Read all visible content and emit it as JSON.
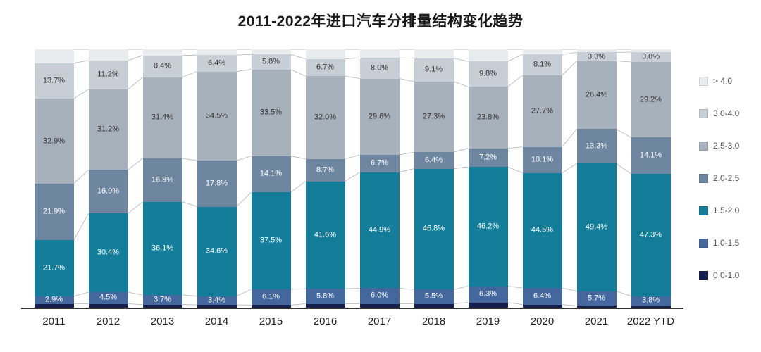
{
  "title": "2011-2022年进口汽车分排量结构变化趋势",
  "chart_data": {
    "type": "bar",
    "stacked": true,
    "percent_stacked": true,
    "title": "2011-2022年进口汽车分排量结构变化趋势",
    "xlabel": "",
    "ylabel": "",
    "ylim": [
      0,
      100
    ],
    "grid": false,
    "legend_position": "right",
    "series_connector_lines": true,
    "connector_line_color": "#b3b3b3",
    "axis_line_color": "#333333",
    "categories": [
      "2011",
      "2012",
      "2013",
      "2014",
      "2015",
      "2016",
      "2017",
      "2018",
      "2019",
      "2020",
      "2021",
      "2022 YTD"
    ],
    "series": [
      {
        "name": "0.0-1.0",
        "color": "#16204e",
        "label_color": "#ffffff",
        "show_labels": false,
        "estimated": true,
        "values": [
          1.5,
          1.5,
          1.2,
          1.1,
          1.0,
          1.5,
          1.5,
          1.5,
          2.0,
          1.2,
          0.7,
          0.7
        ]
      },
      {
        "name": "1.0-1.5",
        "color": "#44689d",
        "label_color": "#ffffff",
        "show_labels": true,
        "estimated": false,
        "values": [
          2.9,
          4.5,
          3.7,
          3.4,
          6.1,
          5.8,
          6.0,
          5.5,
          6.3,
          6.4,
          5.7,
          3.8
        ]
      },
      {
        "name": "1.5-2.0",
        "color": "#147d99",
        "label_color": "#ffffff",
        "show_labels": true,
        "estimated": false,
        "values": [
          21.7,
          30.4,
          36.1,
          34.6,
          37.5,
          41.6,
          44.9,
          46.8,
          46.2,
          44.5,
          49.4,
          47.3
        ]
      },
      {
        "name": "2.0-2.5",
        "color": "#6f86a0",
        "label_color": "#ffffff",
        "show_labels": true,
        "estimated": false,
        "values": [
          21.9,
          16.9,
          16.8,
          17.8,
          14.1,
          8.7,
          6.7,
          6.4,
          7.2,
          10.1,
          13.3,
          14.1
        ]
      },
      {
        "name": "2.5-3.0",
        "color": "#a7b1bb",
        "label_color": "#333333",
        "show_labels": true,
        "estimated": false,
        "values": [
          32.9,
          31.2,
          31.4,
          34.5,
          33.5,
          32.0,
          29.6,
          27.3,
          23.8,
          27.7,
          26.4,
          29.2
        ]
      },
      {
        "name": "3.0-4.0",
        "color": "#c8ced5",
        "label_color": "#333333",
        "show_labels": true,
        "estimated": false,
        "values": [
          13.7,
          11.2,
          8.4,
          6.4,
          5.8,
          6.7,
          8.0,
          9.1,
          9.8,
          8.1,
          3.3,
          3.8
        ]
      },
      {
        "name": "> 4.0",
        "color": "#e9ebed",
        "label_color": "#333333",
        "show_labels": false,
        "estimated": true,
        "values": [
          5.4,
          4.3,
          2.4,
          2.2,
          2.0,
          3.7,
          3.3,
          3.4,
          4.7,
          2.0,
          1.2,
          1.1
        ]
      }
    ]
  }
}
